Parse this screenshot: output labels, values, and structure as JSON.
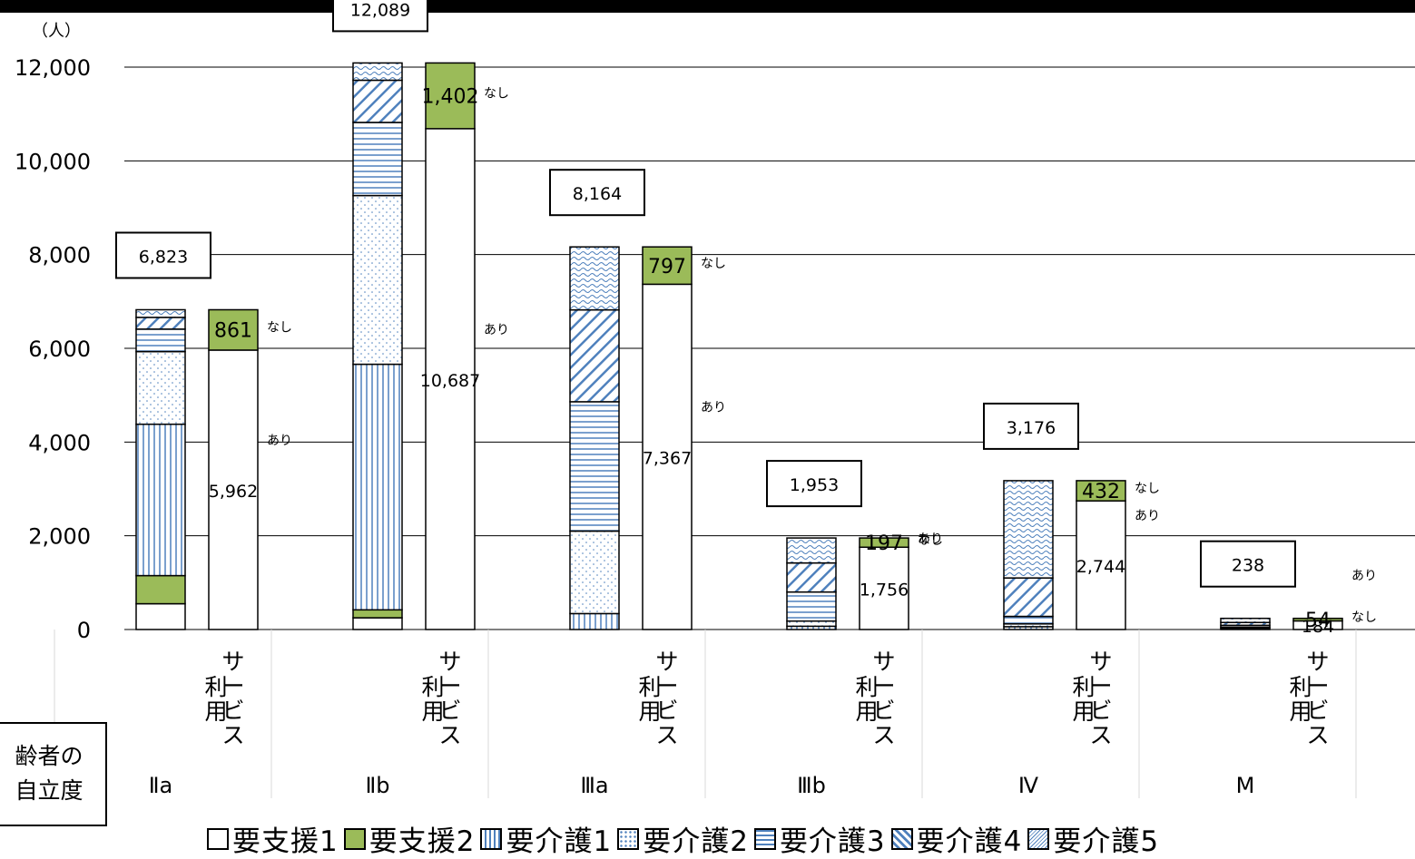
{
  "unit_label": "（人）",
  "corner_label": [
    "齢者の",
    "自立度"
  ],
  "legend": [
    {
      "label": "要支援1",
      "pattern": "white"
    },
    {
      "label": "要支援2",
      "pattern": "green"
    },
    {
      "label": "要介護1",
      "pattern": "vlines"
    },
    {
      "label": "要介護2",
      "pattern": "dots"
    },
    {
      "label": "要介護3",
      "pattern": "hlines"
    },
    {
      "label": "要介護4",
      "pattern": "diag"
    },
    {
      "label": "要介護5",
      "pattern": "wave"
    }
  ],
  "colors": {
    "green": "#9bbb59",
    "blue": "#4f81bd",
    "grid": "#000000"
  },
  "chart_data": {
    "type": "bar",
    "yticks": [
      "0",
      "2,000",
      "4,000",
      "6,000",
      "8,000",
      "10,000",
      "12,000"
    ],
    "ylim": [
      0,
      12000
    ],
    "groups": [
      {
        "category": "Ⅱa",
        "total_label": "6,823",
        "care_levels": [
          550,
          600,
          3230,
          1550,
          480,
          250,
          163
        ],
        "service": {
          "yes": 5962,
          "no": 861,
          "yes_label": "5,962",
          "no_label": "861"
        }
      },
      {
        "category": "Ⅱb",
        "total_label": "12,089",
        "care_levels": [
          250,
          170,
          5240,
          3600,
          1560,
          900,
          369
        ],
        "service": {
          "yes": 10687,
          "no": 1402,
          "yes_label": "10,687",
          "no_label": "1,402"
        }
      },
      {
        "category": "Ⅲa",
        "total_label": "8,164",
        "care_levels": [
          0,
          0,
          340,
          1760,
          2760,
          1960,
          1344
        ],
        "service": {
          "yes": 7367,
          "no": 797,
          "yes_label": "7,367",
          "no_label": "797"
        }
      },
      {
        "category": "Ⅲb",
        "total_label": "1,953",
        "care_levels": [
          0,
          0,
          70,
          110,
          620,
          620,
          533
        ],
        "service": {
          "yes": 1756,
          "no": 197,
          "yes_label": "1,756",
          "no_label": "197"
        }
      },
      {
        "category": "Ⅳ",
        "total_label": "3,176",
        "care_levels": [
          0,
          0,
          60,
          60,
          160,
          820,
          2076
        ],
        "service": {
          "yes": 2744,
          "no": 432,
          "yes_label": "2,744",
          "no_label": "432"
        }
      },
      {
        "category": "M",
        "total_label": "238",
        "care_levels": [
          0,
          0,
          30,
          20,
          40,
          60,
          88
        ],
        "service": {
          "yes": 184,
          "no": 54,
          "yes_label": "184",
          "no_label": "54"
        }
      }
    ],
    "service_bar_label": [
      "サ",
      "ー",
      "ビ",
      "ス"
    ],
    "service_bar_label2": [
      "利",
      "用"
    ],
    "yes_word": "あり",
    "no_word": "なし"
  }
}
